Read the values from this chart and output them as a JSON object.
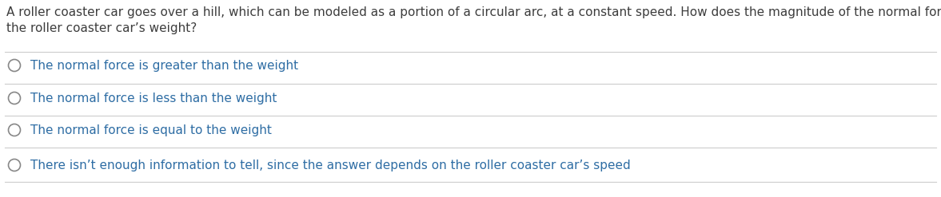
{
  "question_line1": "A roller coaster car goes over a hill, which can be modeled as a portion of a circular arc, at a constant speed. How does the magnitude of the normal force compare to",
  "question_line2": "the roller coaster car’s weight?",
  "options": [
    "The normal force is greater than the weight",
    "The normal force is less than the weight",
    "The normal force is equal to the weight",
    "There isn’t enough information to tell, since the answer depends on the roller coaster car’s speed"
  ],
  "question_color": "#3d3d3d",
  "option_color": "#2e6da4",
  "background_color": "#ffffff",
  "divider_color": "#cccccc",
  "circle_edge_color": "#888888",
  "font_size_question": 11.0,
  "font_size_option": 11.0,
  "fig_width": 11.77,
  "fig_height": 2.47,
  "dpi": 100
}
